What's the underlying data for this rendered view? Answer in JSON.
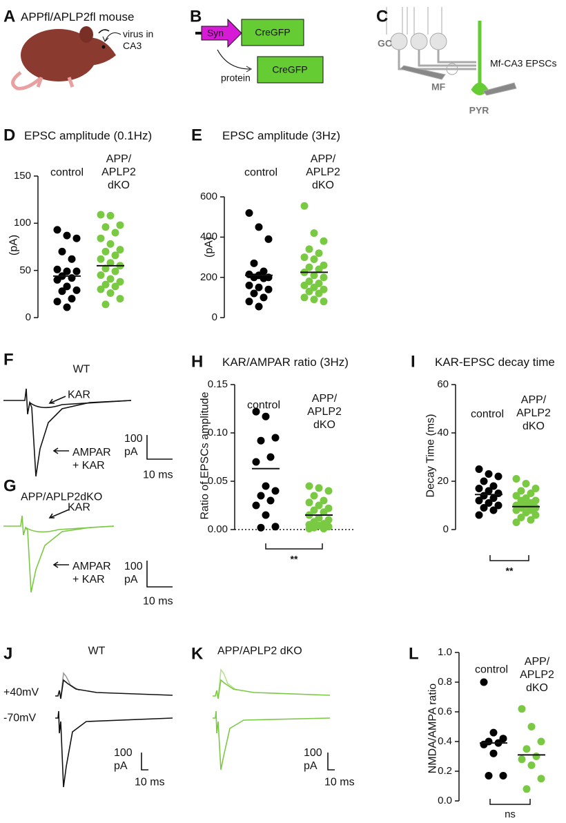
{
  "panels": {
    "A": {
      "label": "A",
      "title": "APPfl/APLP2fl mouse",
      "annotation": "virus in\nCA3"
    },
    "B": {
      "label": "B",
      "promoter": "Syn",
      "gene": "CreGFP",
      "product_label": "protein",
      "product": "CreGFP"
    },
    "C": {
      "label": "C",
      "gc": "GC",
      "mf": "MF",
      "pyr": "PYR",
      "recording": "Mf-CA3 EPSCs"
    },
    "F": {
      "label": "F",
      "title": "WT",
      "kar": "KAR",
      "ampar": "AMPAR\n+ KAR",
      "scale_y": "100\npA",
      "scale_x": "10 ms"
    },
    "G": {
      "label": "G",
      "title": "APP/APLP2dKO",
      "kar": "KAR",
      "ampar": "AMPAR\n+ KAR",
      "scale_y": "100\npA",
      "scale_x": "10 ms"
    },
    "J": {
      "label": "J",
      "title": "WT",
      "v1": "+40mV",
      "v2": "-70mV",
      "scale_y": "100\npA",
      "scale_x": "10 ms"
    },
    "K": {
      "label": "K",
      "title": "APP/APLP2 dKO",
      "scale_y": "100\npA",
      "scale_x": "10 ms"
    }
  },
  "chart_data": [
    {
      "type": "dot",
      "panel": "D",
      "title": "EPSC amplitude (0.1Hz)",
      "ylabel": "(pA)",
      "ylim": [
        0,
        150
      ],
      "yticks": [
        0,
        50,
        100,
        150
      ],
      "series": [
        {
          "name": "control",
          "color": "#000000",
          "mean": 44,
          "values": [
            93,
            87,
            84,
            70,
            62,
            51,
            49,
            49,
            44,
            42,
            40,
            33,
            29,
            28,
            20,
            17,
            11
          ]
        },
        {
          "name": "APP/\nAPLP2\ndKO",
          "color": "#7ac943",
          "mean": 55,
          "values": [
            109,
            108,
            98,
            96,
            90,
            84,
            78,
            72,
            70,
            66,
            62,
            58,
            55,
            52,
            49,
            45,
            41,
            38,
            35,
            33,
            30,
            26,
            20,
            14
          ]
        }
      ]
    },
    {
      "type": "dot",
      "panel": "E",
      "title": "EPSC amplitude (3Hz)",
      "ylabel": "(pA)",
      "ylim": [
        0,
        700
      ],
      "yticks": [
        0,
        200,
        400,
        600
      ],
      "series": [
        {
          "name": "control",
          "color": "#000000",
          "mean": 210,
          "values": [
            520,
            450,
            390,
            270,
            230,
            215,
            210,
            200,
            200,
            195,
            160,
            150,
            140,
            120,
            100,
            80,
            55
          ]
        },
        {
          "name": "APP/\nAPLP2\ndKO",
          "color": "#7ac943",
          "mean": 225,
          "values": [
            555,
            420,
            380,
            340,
            320,
            300,
            290,
            260,
            250,
            240,
            225,
            210,
            200,
            180,
            170,
            160,
            150,
            140,
            130,
            120,
            100,
            90,
            80
          ]
        }
      ]
    },
    {
      "type": "dot",
      "panel": "H",
      "title": "KAR/AMPAR ratio (3Hz)",
      "ylabel": "Ratio of EPSCs amplitude",
      "ylim": [
        0,
        0.15
      ],
      "yticks": [
        {
          "value": 0,
          "label": "0.00"
        },
        {
          "value": 0.05,
          "label": "0.05"
        },
        {
          "value": 0.1,
          "label": "0.10"
        },
        {
          "value": 0.15,
          "label": "0.15"
        }
      ],
      "zero_line": true,
      "significance": "**",
      "series": [
        {
          "name": "control",
          "color": "#000000",
          "mean": 0.063,
          "values": [
            0.122,
            0.117,
            0.095,
            0.092,
            0.075,
            0.07,
            0.045,
            0.04,
            0.035,
            0.03,
            0.025,
            0.015,
            0.003,
            0.002
          ]
        },
        {
          "name": "APP/\nAPLP2\ndKO",
          "color": "#7ac943",
          "mean": 0.015,
          "values": [
            0.045,
            0.043,
            0.04,
            0.035,
            0.03,
            0.028,
            0.025,
            0.022,
            0.02,
            0.018,
            0.015,
            0.012,
            0.01,
            0.008,
            0.006,
            0.005,
            0.004,
            0.003,
            0.002,
            0.001,
            0.001
          ]
        }
      ]
    },
    {
      "type": "dot",
      "panel": "I",
      "title": "KAR-EPSC decay time",
      "ylabel": "Decay Time (ms)",
      "ylim": [
        0,
        60
      ],
      "yticks": [
        0,
        20,
        40,
        60
      ],
      "significance": "**",
      "series": [
        {
          "name": "control",
          "color": "#000000",
          "mean": 14.5,
          "values": [
            25,
            23,
            22,
            20,
            18,
            17,
            16,
            15,
            14,
            13,
            12,
            11,
            10,
            9,
            8,
            6
          ]
        },
        {
          "name": "APP/\nAPLP2\ndKO",
          "color": "#7ac943",
          "mean": 9.5,
          "values": [
            21,
            19,
            17,
            16,
            15,
            14,
            13,
            12,
            12,
            11,
            10,
            10,
            9,
            9,
            8,
            8,
            7,
            6,
            5,
            4,
            3
          ]
        }
      ]
    },
    {
      "type": "dot",
      "panel": "L",
      "ylabel": "NMDA/AMPA ratio",
      "ylim": [
        0,
        1
      ],
      "yticks": [
        {
          "value": 0,
          "label": "0.0"
        },
        {
          "value": 0.2,
          "label": "0.2"
        },
        {
          "value": 0.4,
          "label": "0.4"
        },
        {
          "value": 0.6,
          "label": "0.6"
        },
        {
          "value": 0.8,
          "label": "0.8"
        },
        {
          "value": 1,
          "label": "1.0"
        }
      ],
      "significance": "ns",
      "series": [
        {
          "name": "control",
          "color": "#000000",
          "mean": 0.39,
          "values": [
            0.8,
            0.46,
            0.42,
            0.4,
            0.39,
            0.38,
            0.32,
            0.17,
            0.17
          ]
        },
        {
          "name": "APP/\nAPLP2\ndKO",
          "color": "#7ac943",
          "mean": 0.31,
          "values": [
            0.62,
            0.5,
            0.4,
            0.35,
            0.3,
            0.28,
            0.24,
            0.15,
            0.08
          ]
        }
      ]
    }
  ]
}
